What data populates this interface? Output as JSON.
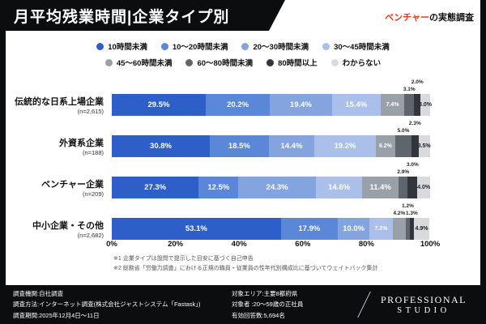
{
  "header": {
    "title": "月平均残業時間|企業タイプ別",
    "tagline_highlight": "ベンチャー",
    "tagline_rest": "の実態調査",
    "accent_color": "#e8391d",
    "frame_color": "#0c0d0f"
  },
  "chart_data": {
    "type": "bar",
    "subtype": "horizontal-stacked-100pct",
    "title": "月平均残業時間|企業タイプ別",
    "unit": "%",
    "xlim": [
      0,
      100
    ],
    "x_ticks": [
      "0%",
      "20%",
      "40%",
      "60%",
      "80%",
      "100%"
    ],
    "legend_position": "top",
    "categories": [
      "伝統的な日系上場企業",
      "外資系企業",
      "ベンチャー企業",
      "中小企業・その他"
    ],
    "category_ns": [
      "(n=2,615)",
      "(n=188)",
      "(n=209)",
      "(n=2,682)"
    ],
    "series": [
      {
        "name": "10時間未満",
        "color": "#2e5fc9",
        "values": [
          29.5,
          30.8,
          27.3,
          53.1
        ]
      },
      {
        "name": "10〜20時間未満",
        "color": "#5b87d8",
        "values": [
          20.2,
          18.5,
          12.5,
          17.9
        ]
      },
      {
        "name": "20〜30時間未満",
        "color": "#84a4e0",
        "values": [
          19.4,
          14.4,
          24.3,
          10.0
        ]
      },
      {
        "name": "30〜45時間未満",
        "color": "#aabfe9",
        "values": [
          15.4,
          19.2,
          14.6,
          7.2
        ]
      },
      {
        "name": "45〜60時間未満",
        "color": "#9aa0a8",
        "values": [
          7.4,
          6.2,
          11.4,
          4.2
        ]
      },
      {
        "name": "60〜80時間未満",
        "color": "#5f656d",
        "values": [
          3.1,
          5.0,
          2.9,
          1.2
        ]
      },
      {
        "name": "80時間以上",
        "color": "#32363c",
        "values": [
          2.0,
          2.3,
          3.0,
          1.3
        ]
      },
      {
        "name": "わからない",
        "color": "#d8dadd",
        "values": [
          3.0,
          3.5,
          4.0,
          4.9
        ]
      }
    ]
  },
  "footnotes": [
    "※1 企業タイプは設問で提示した目安に基づく自己申告",
    "※2 総務省「労働力調査」における正規の職員・従業員の性年代別構成比に基づいてウェイトバック集計"
  ],
  "footer": {
    "left_lines": [
      "調査機関:自社調査",
      "調査方法:インターネット調査(株式会社ジャストシステム「Fastask」)",
      "調査期間:2025年12月4日〜11日"
    ],
    "right_lines": [
      "対象エリア:主要8都府県",
      "対象者  :20〜59歳の正社員",
      "有効回答数:5,694名"
    ],
    "logo": {
      "line1": "PROFESSIONAL",
      "line2": "STUDIO"
    }
  }
}
